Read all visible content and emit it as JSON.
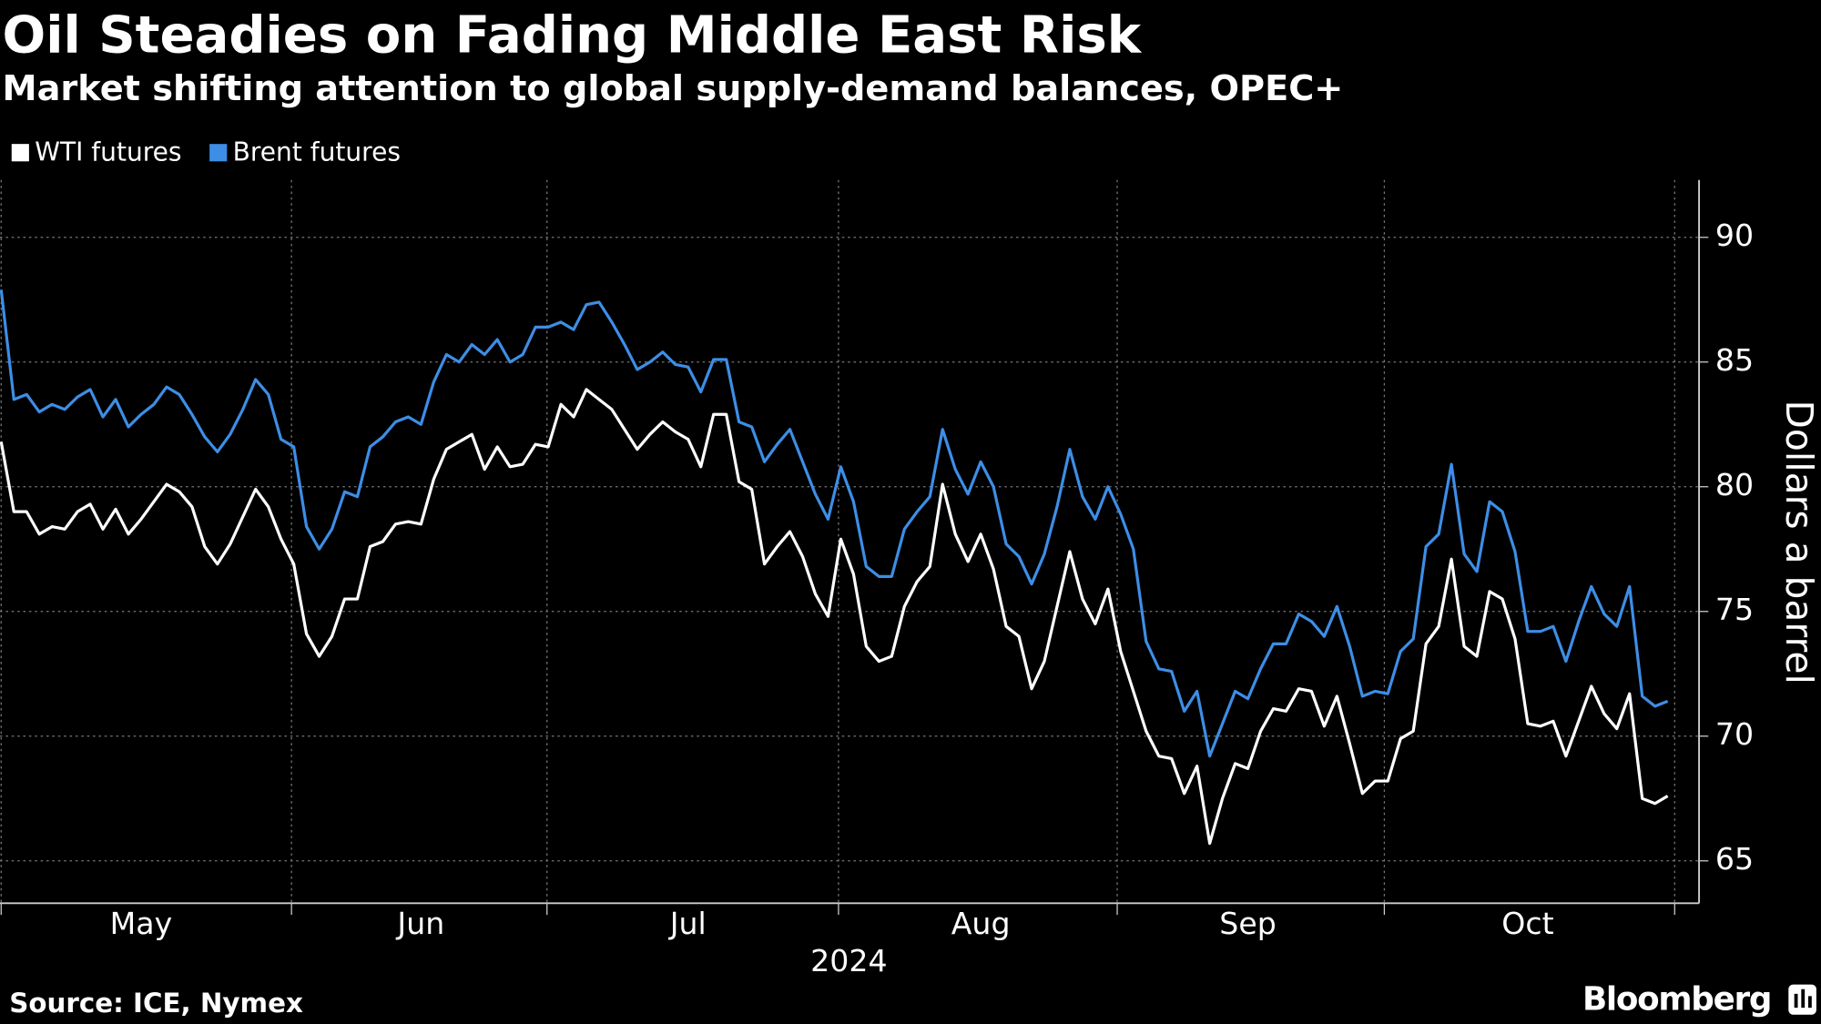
{
  "chart_data": {
    "type": "line",
    "title": "Oil Steadies on Fading Middle East Risk",
    "subtitle": "Market shifting attention to global supply-demand balances, OPEC+",
    "ylabel": "Dollars a barrel",
    "xlabel": "2024",
    "categories": [
      null,
      null,
      null,
      null,
      null,
      null,
      null,
      null,
      null,
      null,
      null,
      "May",
      null,
      null,
      null,
      null,
      null,
      null,
      null,
      null,
      null,
      null,
      null,
      null,
      null,
      null,
      null,
      null,
      null,
      null,
      null,
      null,
      null,
      "Jun",
      null,
      null,
      null,
      null,
      null,
      null,
      null,
      null,
      null,
      null,
      null,
      null,
      null,
      null,
      null,
      null,
      null,
      null,
      null,
      null,
      "Jul",
      null,
      null,
      null,
      null,
      null,
      null,
      null,
      null,
      null,
      null,
      null,
      null,
      null,
      null,
      null,
      null,
      null,
      null,
      null,
      null,
      null,
      null,
      "Aug",
      null,
      null,
      null,
      null,
      null,
      null,
      null,
      null,
      null,
      null,
      null,
      null,
      null,
      null,
      null,
      null,
      null,
      null,
      null,
      null,
      "Sep",
      null,
      null,
      null,
      null,
      null,
      null,
      null,
      null,
      null,
      null,
      null,
      null,
      null,
      null,
      null,
      null,
      null,
      null,
      null,
      null,
      null,
      "Oct",
      null,
      null,
      null,
      null,
      null,
      null,
      null,
      null,
      null,
      null,
      null
    ],
    "series": [
      {
        "name": "WTI futures",
        "color": "#ffffff",
        "values": [
          81.8,
          79.0,
          79.0,
          78.1,
          78.4,
          78.3,
          79.0,
          79.3,
          78.3,
          79.1,
          78.1,
          78.7,
          79.4,
          80.1,
          79.8,
          79.2,
          77.6,
          76.9,
          77.7,
          78.8,
          79.9,
          79.2,
          77.9,
          76.9,
          74.1,
          73.2,
          74.0,
          75.5,
          75.5,
          77.6,
          77.8,
          78.5,
          78.6,
          78.5,
          80.3,
          81.5,
          81.8,
          82.1,
          80.7,
          81.6,
          80.8,
          80.9,
          81.7,
          81.6,
          83.3,
          82.8,
          83.9,
          83.5,
          83.1,
          82.3,
          81.5,
          82.1,
          82.6,
          82.2,
          81.9,
          80.8,
          82.9,
          82.9,
          80.2,
          79.9,
          76.9,
          77.6,
          78.2,
          77.2,
          75.7,
          74.8,
          77.9,
          76.5,
          73.6,
          73.0,
          73.2,
          75.2,
          76.2,
          76.8,
          80.1,
          78.1,
          77.0,
          78.1,
          76.7,
          74.4,
          74.0,
          71.9,
          73.0,
          75.2,
          77.4,
          75.5,
          74.5,
          75.9,
          73.4,
          71.8,
          70.2,
          69.2,
          69.1,
          67.7,
          68.8,
          65.7,
          67.5,
          68.9,
          68.7,
          70.2,
          71.1,
          71.0,
          71.9,
          71.8,
          70.4,
          71.6,
          69.7,
          67.7,
          68.2,
          68.2,
          69.9,
          70.2,
          73.7,
          74.4,
          77.1,
          73.6,
          73.2,
          75.8,
          75.5,
          73.9,
          70.5,
          70.4,
          70.6,
          69.2,
          70.6,
          72.0,
          70.9,
          70.3,
          71.7,
          67.5,
          67.3,
          67.6
        ]
      },
      {
        "name": "Brent futures",
        "color": "#3d8ee6",
        "values": [
          87.9,
          83.5,
          83.7,
          83.0,
          83.3,
          83.1,
          83.6,
          83.9,
          82.8,
          83.5,
          82.4,
          82.9,
          83.3,
          84.0,
          83.7,
          82.9,
          82.0,
          81.4,
          82.1,
          83.1,
          84.3,
          83.7,
          81.9,
          81.6,
          78.4,
          77.5,
          78.3,
          79.8,
          79.6,
          81.6,
          82.0,
          82.6,
          82.8,
          82.5,
          84.2,
          85.3,
          85.0,
          85.7,
          85.3,
          85.9,
          85.0,
          85.3,
          86.4,
          86.4,
          86.6,
          86.3,
          87.3,
          87.4,
          86.6,
          85.7,
          84.7,
          85.0,
          85.4,
          84.9,
          84.8,
          83.8,
          85.1,
          85.1,
          82.6,
          82.4,
          81.0,
          81.7,
          82.3,
          81.0,
          79.7,
          78.7,
          80.8,
          79.4,
          76.8,
          76.4,
          76.4,
          78.3,
          79.0,
          79.6,
          82.3,
          80.7,
          79.7,
          81.0,
          80.0,
          77.7,
          77.2,
          76.1,
          77.3,
          79.2,
          81.5,
          79.6,
          78.7,
          80.0,
          78.9,
          77.5,
          73.8,
          72.7,
          72.6,
          71.0,
          71.8,
          69.2,
          70.5,
          71.8,
          71.5,
          72.7,
          73.7,
          73.7,
          74.9,
          74.6,
          74.0,
          75.2,
          73.6,
          71.6,
          71.8,
          71.7,
          73.4,
          73.9,
          77.6,
          78.1,
          80.9,
          77.3,
          76.6,
          79.4,
          79.0,
          77.4,
          74.2,
          74.2,
          74.4,
          73.0,
          74.6,
          76.0,
          74.9,
          74.4,
          76.0,
          71.6,
          71.2,
          71.4
        ]
      }
    ],
    "ylim": [
      63.3,
      92.3
    ],
    "yticks": [
      65,
      70,
      75,
      80,
      85,
      90
    ],
    "grid": true
  },
  "footer": {
    "source": "Source: ICE, Nymex",
    "brand": "Bloomberg"
  }
}
